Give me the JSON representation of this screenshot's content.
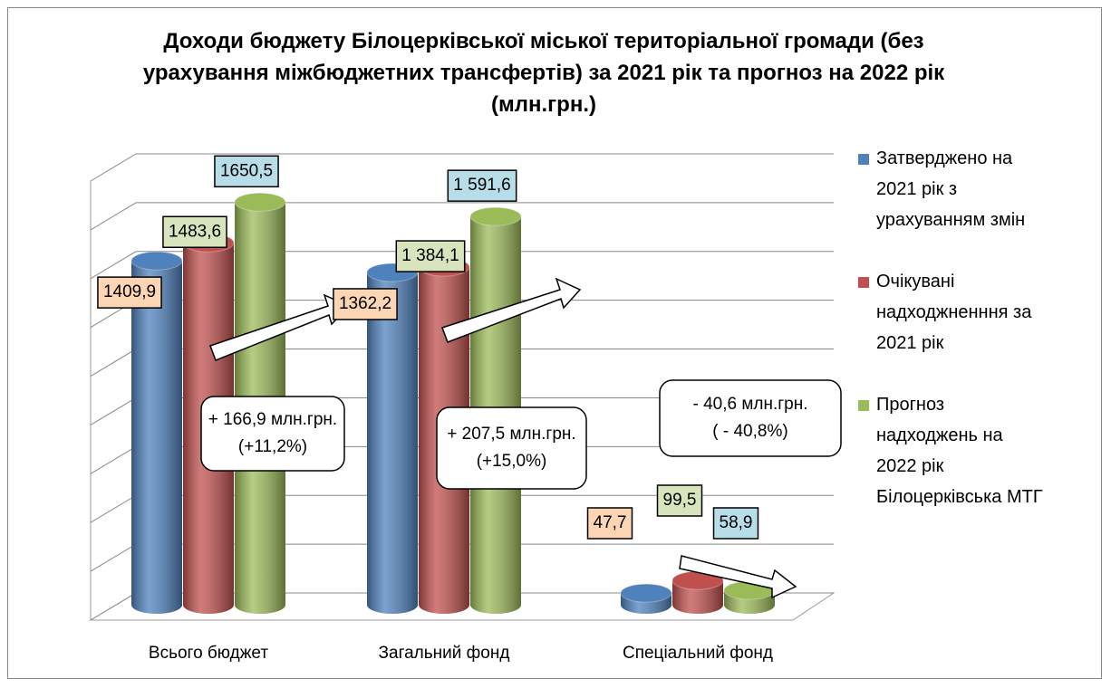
{
  "chart_data": {
    "type": "bar3d",
    "title": "Доходи бюджету Білоцерківської міської територіальної громади (без урахування міжбюджетних трансфертів) за 2021 рік та прогноз на 2022 рік (млн.грн.)",
    "categories": [
      "Всього бюджет",
      "Загальний фонд",
      "Спеціальний фонд"
    ],
    "series": [
      {
        "name": "Затверджено на 2021 рік з урахуванням змін",
        "color": "#4f81bd",
        "label_fill": "#fcd5b5",
        "values": [
          1409.9,
          1362.2,
          47.7
        ],
        "value_labels": [
          "1409,9",
          "1362,2",
          "47,7"
        ]
      },
      {
        "name": "Очікувані надходжненння за 2021 рік",
        "color": "#c0504d",
        "label_fill": "#d7e4bd",
        "values": [
          1483.6,
          1384.1,
          99.5
        ],
        "value_labels": [
          "1483,6",
          "1 384,1",
          "99,5"
        ]
      },
      {
        "name": "Прогноз надходжень на 2022 рік Білоцерківська МТГ",
        "color": "#9bbb59",
        "label_fill": "#b7dee8",
        "values": [
          1650.5,
          1591.6,
          58.9
        ],
        "value_labels": [
          "1650,5",
          "1 591,6",
          "58,9"
        ]
      }
    ],
    "annotations": [
      [
        "+ 166,9 млн.грн.",
        "(+11,2%)"
      ],
      [
        "+ 207,5 млн.грн.",
        "(+15,0%)"
      ],
      [
        "- 40,6 млн.грн.",
        "( - 40,8%)"
      ]
    ],
    "ylim": [
      0,
      1800
    ],
    "yticks": [
      0,
      200,
      400,
      600,
      800,
      1000,
      1200,
      1400,
      1600,
      1800
    ],
    "grid": true,
    "legend": "right"
  }
}
